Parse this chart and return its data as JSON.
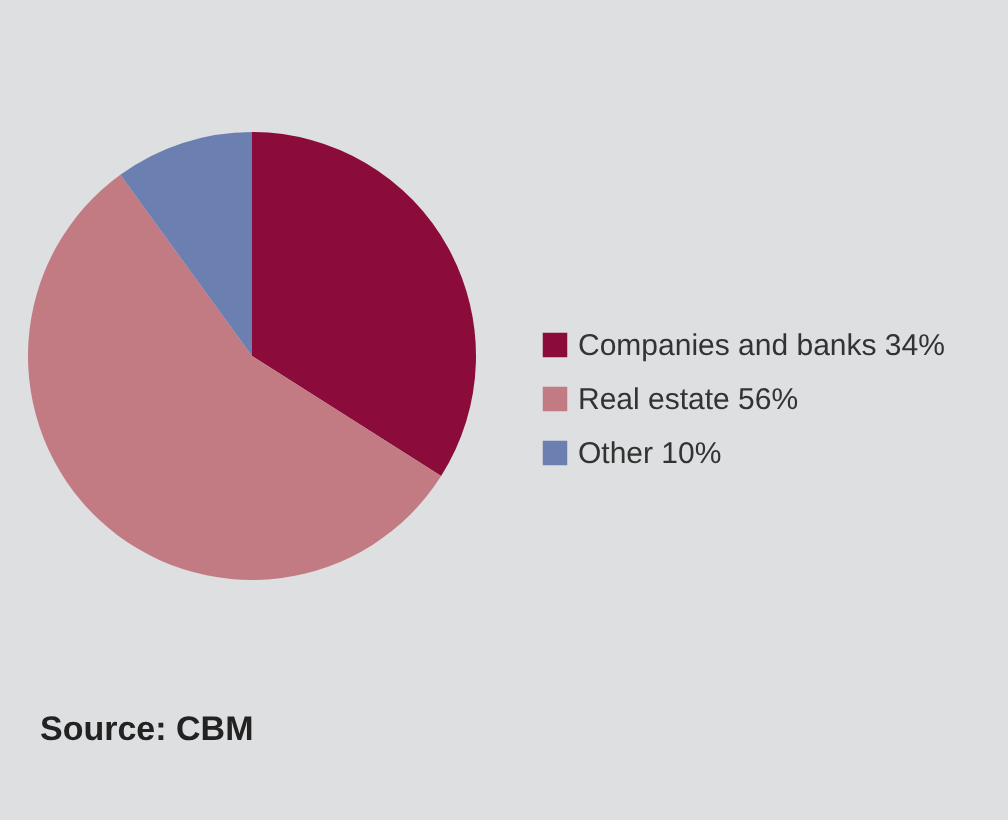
{
  "chart_data": {
    "type": "pie",
    "categories": [
      "Companies and banks 34%",
      "Real estate 56%",
      "Other 10%"
    ],
    "values": [
      34,
      56,
      10
    ],
    "colors": [
      "#8b0c3b",
      "#c27a83",
      "#6b7fb0"
    ],
    "legend": "right",
    "annotations": [
      "Source: CBM"
    ]
  }
}
